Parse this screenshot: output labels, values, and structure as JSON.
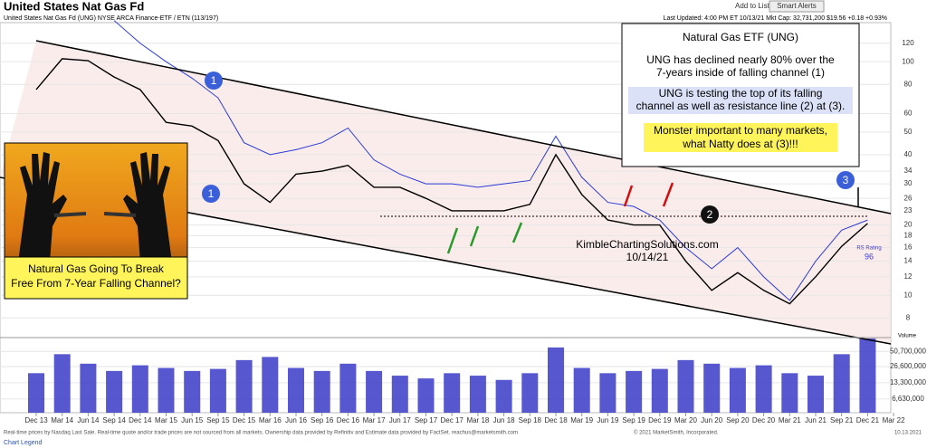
{
  "header": {
    "title": "United States Nat Gas Fd",
    "add_to_list": "Add to List:",
    "smart_alerts": "Smart Alerts",
    "subtitle": "United States Nat Gas Fd   (UNG) NYSE ARCA  Finance-ETF / ETN (113/197)",
    "updated": "Last Updated: 4:00 PM ET 10/13/21   Mkt Cap: 32,731,200   $19.56   +0.18   +0.93%"
  },
  "chart_data": [
    {
      "type": "line",
      "log_scale": true,
      "categories": [
        "Dec 13",
        "Mar 14",
        "Jun 14",
        "Sep 14",
        "Dec 14",
        "Mar 15",
        "Jun 15",
        "Sep 15",
        "Dec 15",
        "Mar 16",
        "Jun 16",
        "Sep 16",
        "Dec 16",
        "Mar 17",
        "Jun 17",
        "Sep 17",
        "Dec 17",
        "Mar 18",
        "Jun 18",
        "Sep 18",
        "Dec 18",
        "Mar 19",
        "Jun 19",
        "Sep 19",
        "Dec 19",
        "Mar 20",
        "Jun 20",
        "Sep 20",
        "Dec 20",
        "Mar 21",
        "Jun 21",
        "Sep 21",
        "Dec 21",
        "Mar 22"
      ],
      "ylim": [
        6.65,
        147
      ],
      "yticks": [
        8,
        10,
        12,
        14,
        16,
        18,
        20,
        23,
        26,
        30,
        34,
        40,
        50,
        60,
        80,
        100,
        120
      ],
      "series": [
        {
          "color": "#000000",
          "values": [
            76,
            103,
            101,
            86,
            76,
            55,
            53,
            46,
            30,
            25,
            33,
            34,
            36,
            29,
            29,
            26,
            23,
            23,
            23,
            24.5,
            40,
            27,
            21,
            20,
            20,
            14,
            10.5,
            12.5,
            10.5,
            9.2,
            12,
            16.2,
            20.3,
            null
          ]
        },
        {
          "color": "#2b3bd6",
          "values": [
            null,
            null,
            null,
            150,
            120,
            100,
            85,
            70,
            45,
            40,
            42,
            45,
            52,
            38,
            33,
            30,
            30,
            29,
            30,
            31,
            48,
            32,
            25,
            24,
            21,
            16,
            13,
            16,
            12,
            9.5,
            14,
            19,
            21,
            null
          ]
        }
      ]
    },
    {
      "type": "bar",
      "title": "Volume",
      "log_scale": true,
      "color": "#3a3ac8",
      "ylim": [
        3700000,
        88000000
      ],
      "yticks": [
        {
          "value": 6630000,
          "label": "6,630,000"
        },
        {
          "value": 13300000,
          "label": "13,300,000"
        },
        {
          "value": 26600000,
          "label": "26,600,000"
        },
        {
          "value": 50700000,
          "label": "50,700,000"
        }
      ],
      "values": [
        20000000,
        45000000,
        30000000,
        22000000,
        28000000,
        25000000,
        22000000,
        24000000,
        35000000,
        40000000,
        25000000,
        22000000,
        30000000,
        22000000,
        18000000,
        16000000,
        20000000,
        18000000,
        15000000,
        20000000,
        60000000,
        25000000,
        20000000,
        22000000,
        24000000,
        35000000,
        30000000,
        25000000,
        28000000,
        20000000,
        18000000,
        45000000,
        88000000,
        null
      ]
    }
  ],
  "annotations": {
    "box_title": "Natural Gas ETF (UNG)",
    "box_line1": "UNG has declined nearly 80% over the",
    "box_line2": "7-years inside of falling channel (1)",
    "box_line3": "UNG is testing the top of its falling",
    "box_line4": "channel as well as resistance line (2) at (3).",
    "box_line5": "Monster important to many markets,",
    "box_line6": "what Natty does at (3)!!!",
    "marker_1a": "1",
    "marker_1b": "1",
    "marker_2": "2",
    "marker_3": "3",
    "watermark": "KimbleChartingSolutions.com",
    "date": "10/14/21",
    "rs_label": "RS Rating",
    "rs_value": "96",
    "photo_caption1": "Natural Gas Going To Break",
    "photo_caption2": "Free From 7-Year Falling Channel?"
  },
  "footer": {
    "disclaimer": "Real-time prices by Nasdaq Last Sale. Real-time quote and/or trade prices are not sourced from all markets. Ownership data provided by Refinitiv and Estimate data provided by FactSet. reachus@marketsmith.com",
    "copyright": "© 2021 MarketSmith, Incorporated.",
    "date": "10.13.2021",
    "legend": "Chart Legend"
  }
}
